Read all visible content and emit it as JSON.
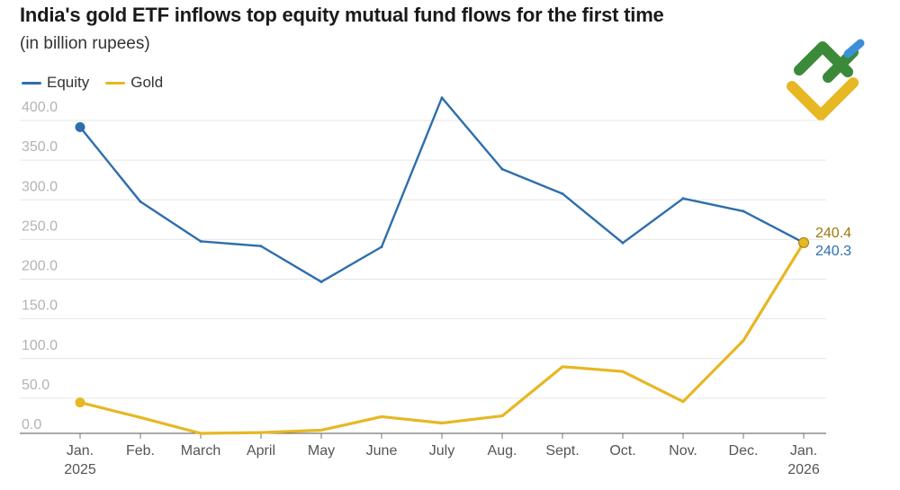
{
  "header": {
    "title": "India's gold ETF inflows top equity mutual fund flows for the first time",
    "subtitle": "(in billion rupees)"
  },
  "legend": [
    {
      "label": "Equity",
      "color": "#2e6ead"
    },
    {
      "label": "Gold",
      "color": "#e7b724"
    }
  ],
  "chart_data": {
    "type": "line",
    "title": "India's gold ETF inflows top equity mutual fund flows for the first time",
    "subtitle": "(in billion rupees)",
    "xlabel": "",
    "ylabel": "",
    "ylim": [
      0,
      400
    ],
    "yticks": [
      "0.0",
      "50.0",
      "100.0",
      "150.0",
      "200.0",
      "250.0",
      "300.0",
      "350.0",
      "400.0"
    ],
    "categories": [
      "Jan.",
      "Feb.",
      "March",
      "April",
      "May",
      "June",
      "July",
      "Aug.",
      "Sept.",
      "Oct.",
      "Nov.",
      "Dec.",
      "Jan."
    ],
    "year_labels": {
      "0": "2025",
      "12": "2026"
    },
    "legend_position": "top-left",
    "series": [
      {
        "name": "Equity",
        "color": "#2e6ead",
        "values": [
          386,
          292,
          242,
          236,
          191,
          235,
          423,
          333,
          302,
          240,
          296,
          280,
          240.3
        ]
      },
      {
        "name": "Gold",
        "color": "#e7b724",
        "values": [
          39,
          20,
          0,
          1,
          4,
          21,
          13,
          22,
          84,
          78,
          40,
          117,
          240.4
        ]
      }
    ],
    "end_labels": [
      {
        "series": "Gold",
        "text": "240.4",
        "color": "#9a7a10"
      },
      {
        "series": "Equity",
        "text": "240.3",
        "color": "#2e6ead"
      }
    ]
  }
}
